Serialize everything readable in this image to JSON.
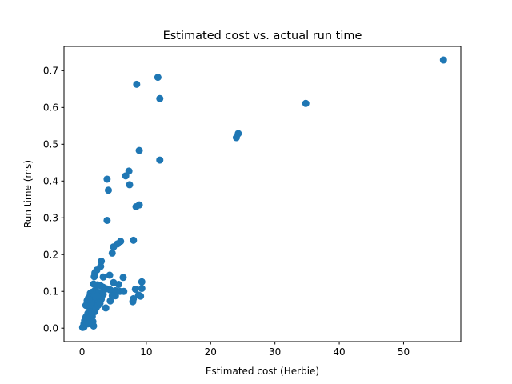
{
  "chart_data": {
    "type": "scatter",
    "title": "Estimated cost vs. actual run time",
    "xlabel": "Estimated cost (Herbie)",
    "ylabel": "Run time (ms)",
    "xlim": [
      -2.8,
      58.9
    ],
    "ylim": [
      -0.0365,
      0.766
    ],
    "xticks": [
      0,
      10,
      20,
      30,
      40,
      50
    ],
    "xtick_labels": [
      "0",
      "10",
      "20",
      "30",
      "40",
      "50"
    ],
    "yticks": [
      0.0,
      0.1,
      0.2,
      0.3,
      0.4,
      0.5,
      0.6,
      0.7
    ],
    "ytick_labels": [
      "0.0",
      "0.1",
      "0.2",
      "0.3",
      "0.4",
      "0.5",
      "0.6",
      "0.7"
    ],
    "grid": false,
    "legend": "none",
    "marker_color": "#1f77b4",
    "series": [
      {
        "points": [
          [
            56.2,
            0.729
          ],
          [
            34.8,
            0.611
          ],
          [
            24.3,
            0.529
          ],
          [
            24.0,
            0.518
          ],
          [
            11.8,
            0.682
          ],
          [
            12.1,
            0.624
          ],
          [
            8.5,
            0.663
          ],
          [
            12.1,
            0.457
          ],
          [
            8.9,
            0.483
          ],
          [
            3.9,
            0.405
          ],
          [
            4.1,
            0.375
          ],
          [
            7.3,
            0.427
          ],
          [
            6.8,
            0.414
          ],
          [
            7.4,
            0.39
          ],
          [
            8.9,
            0.335
          ],
          [
            8.4,
            0.33
          ],
          [
            3.9,
            0.293
          ],
          [
            8.0,
            0.239
          ],
          [
            6.0,
            0.236
          ],
          [
            5.5,
            0.229
          ],
          [
            4.9,
            0.221
          ],
          [
            4.7,
            0.204
          ],
          [
            3.0,
            0.182
          ],
          [
            2.9,
            0.168
          ],
          [
            2.3,
            0.158
          ],
          [
            2.0,
            0.15
          ],
          [
            1.9,
            0.14
          ],
          [
            3.3,
            0.139
          ],
          [
            4.3,
            0.144
          ],
          [
            6.4,
            0.138
          ],
          [
            9.3,
            0.126
          ],
          [
            4.9,
            0.124
          ],
          [
            5.7,
            0.119
          ],
          [
            1.8,
            0.12
          ],
          [
            2.4,
            0.118
          ],
          [
            2.9,
            0.115
          ],
          [
            3.3,
            0.111
          ],
          [
            3.8,
            0.107
          ],
          [
            4.4,
            0.104
          ],
          [
            5.2,
            0.102
          ],
          [
            5.9,
            0.1
          ],
          [
            6.5,
            0.1
          ],
          [
            8.3,
            0.106
          ],
          [
            9.3,
            0.108
          ],
          [
            8.8,
            0.09
          ],
          [
            9.1,
            0.087
          ],
          [
            8.0,
            0.08
          ],
          [
            7.9,
            0.072
          ],
          [
            5.2,
            0.088
          ],
          [
            4.7,
            0.088
          ],
          [
            4.4,
            0.074
          ],
          [
            3.7,
            0.055
          ],
          [
            3.3,
            0.092
          ],
          [
            2.7,
            0.096
          ],
          [
            2.3,
            0.099
          ],
          [
            2.0,
            0.102
          ],
          [
            1.6,
            0.098
          ],
          [
            1.3,
            0.095
          ],
          [
            1.2,
            0.086
          ],
          [
            1.0,
            0.082
          ],
          [
            0.8,
            0.075
          ],
          [
            0.6,
            0.062
          ],
          [
            0.9,
            0.06
          ],
          [
            1.3,
            0.06
          ],
          [
            1.7,
            0.065
          ],
          [
            2.2,
            0.07
          ],
          [
            2.6,
            0.073
          ],
          [
            3.0,
            0.079
          ],
          [
            1.9,
            0.084
          ],
          [
            2.4,
            0.088
          ],
          [
            1.6,
            0.052
          ],
          [
            1.3,
            0.045
          ],
          [
            0.9,
            0.04
          ],
          [
            0.6,
            0.03
          ],
          [
            0.4,
            0.02
          ],
          [
            0.3,
            0.012
          ],
          [
            0.2,
            0.005
          ],
          [
            0.1,
            0.002
          ],
          [
            0.2,
            0.004
          ],
          [
            0.4,
            0.007
          ],
          [
            0.5,
            0.01
          ],
          [
            0.3,
            0.003
          ],
          [
            0.7,
            0.015
          ],
          [
            0.9,
            0.023
          ],
          [
            1.2,
            0.028
          ],
          [
            1.6,
            0.032
          ],
          [
            1.7,
            0.018
          ],
          [
            1.5,
            0.04
          ],
          [
            1.8,
            0.006
          ],
          [
            1.0,
            0.012
          ],
          [
            2.0,
            0.045
          ],
          [
            2.2,
            0.055
          ],
          [
            2.5,
            0.062
          ],
          [
            1.4,
            0.07
          ],
          [
            1.1,
            0.078
          ],
          [
            2.8,
            0.068
          ]
        ]
      }
    ]
  }
}
